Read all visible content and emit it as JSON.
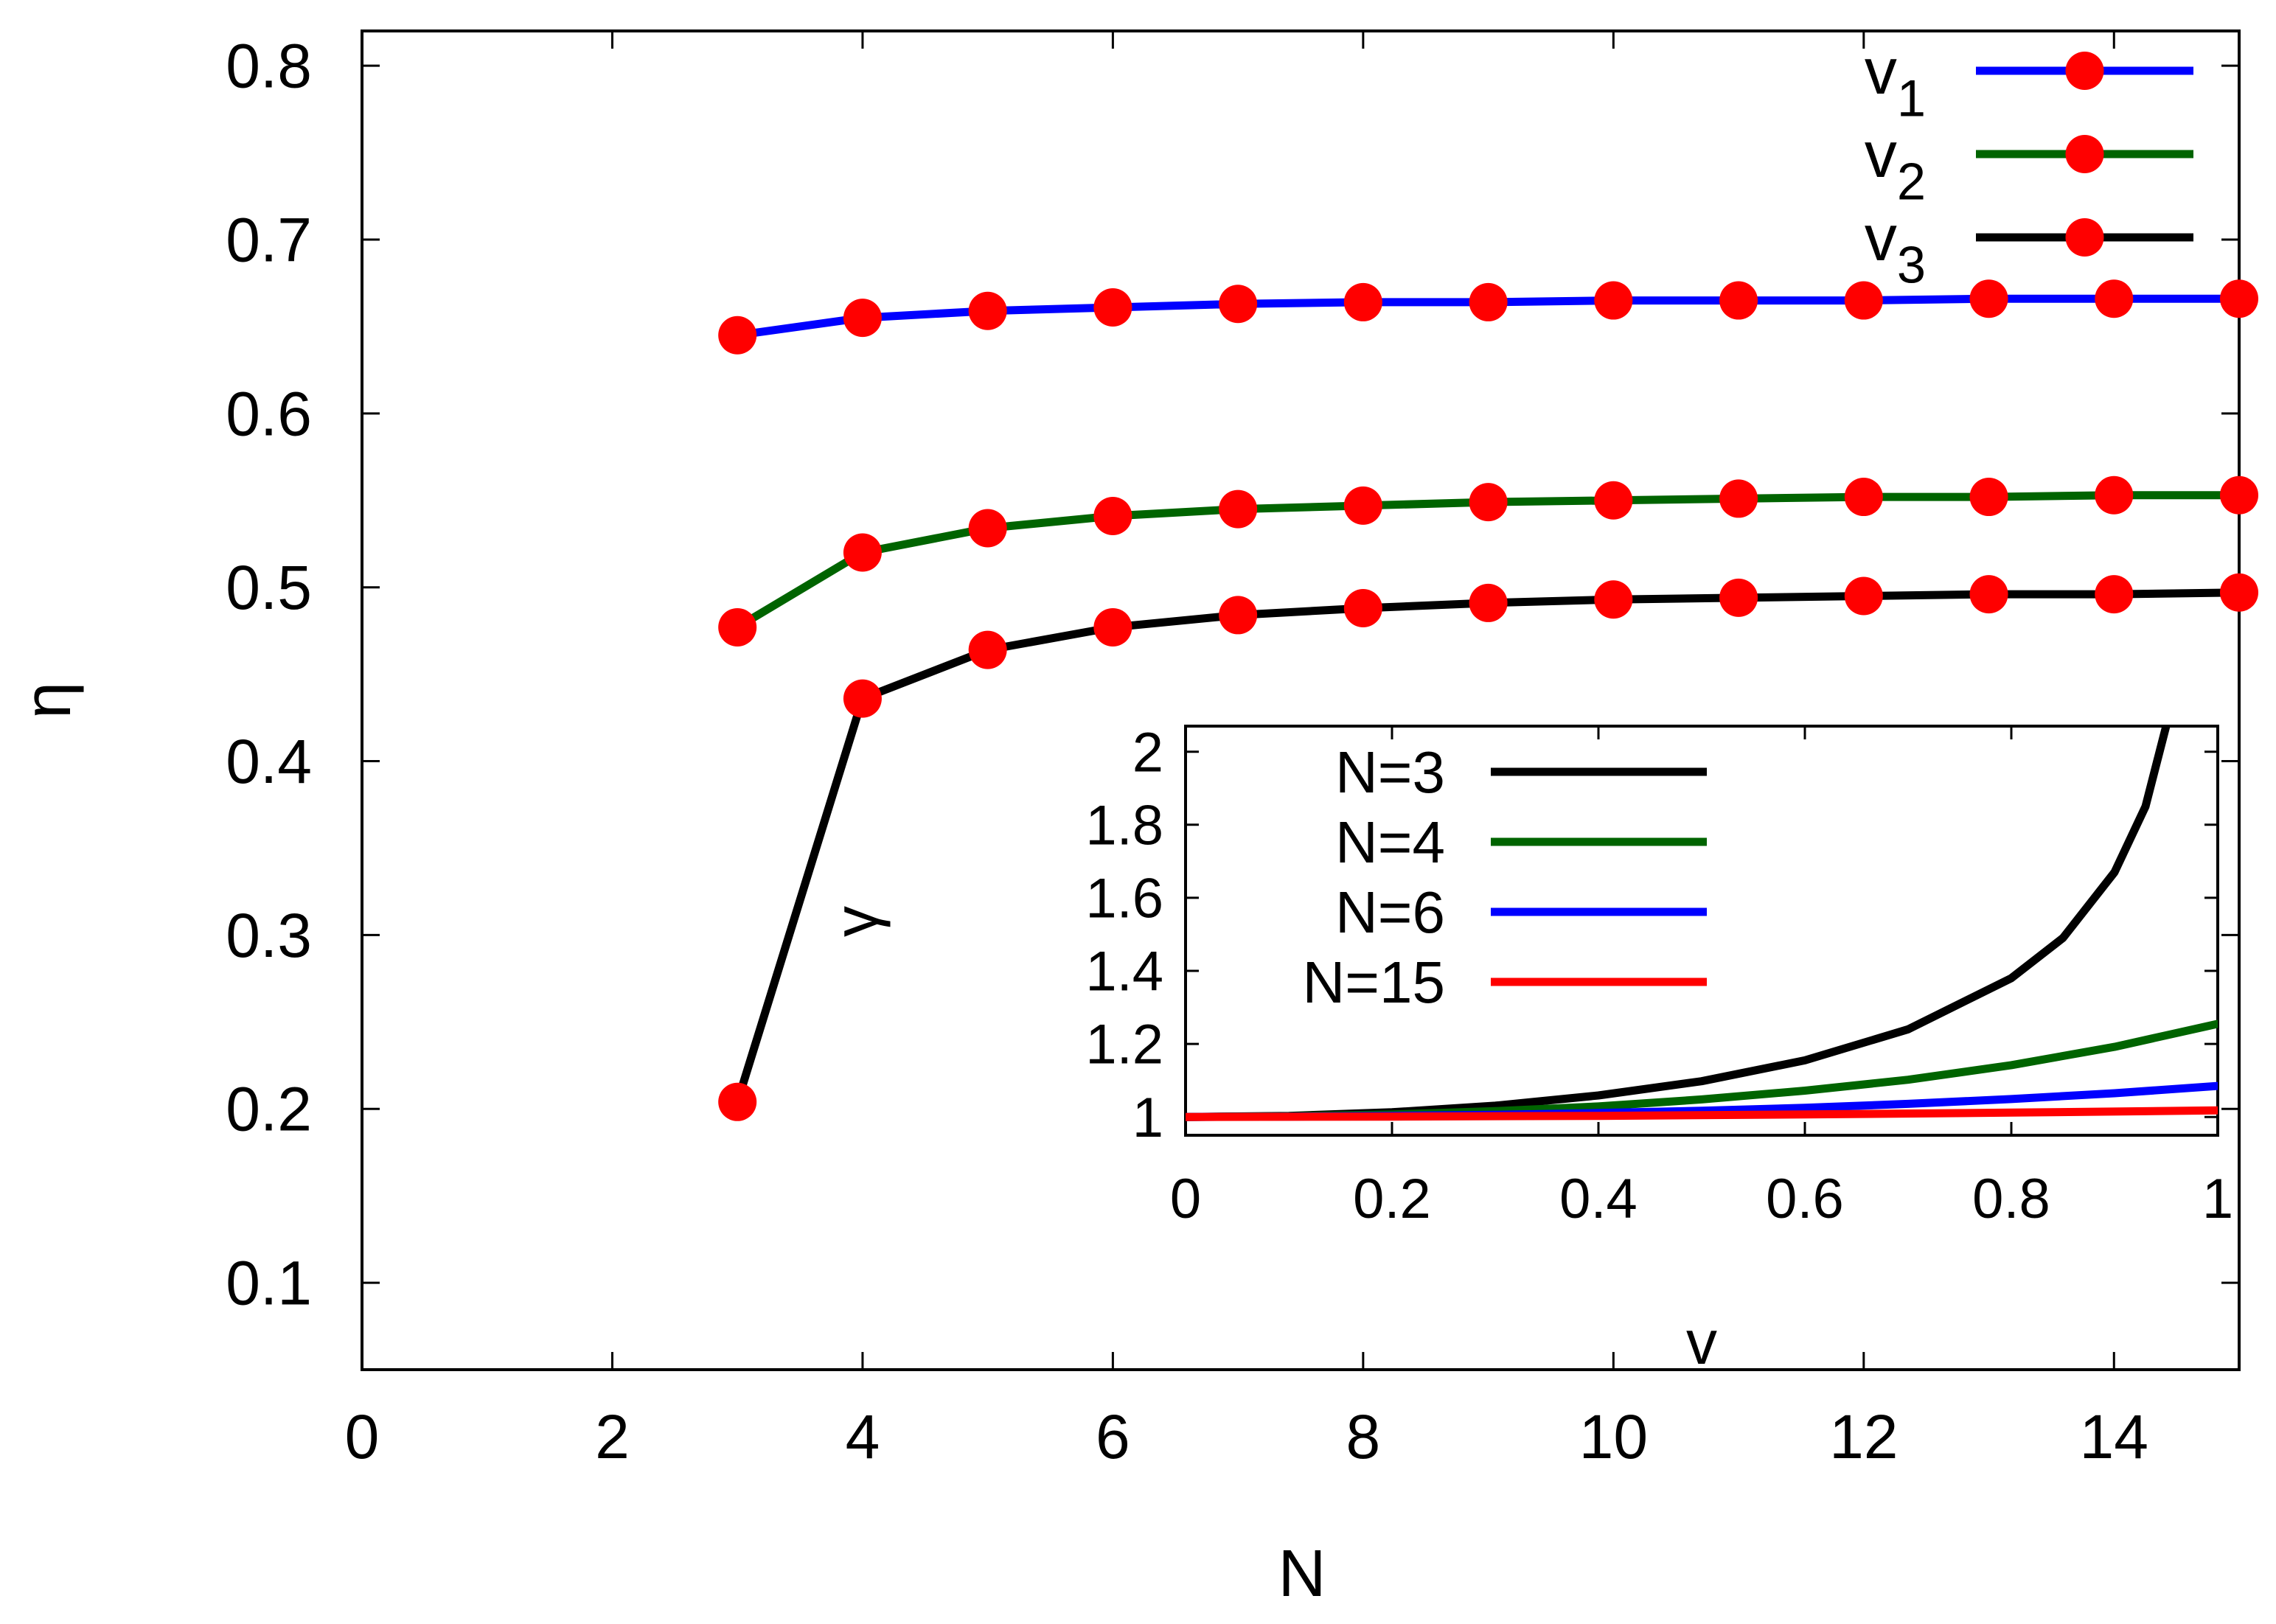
{
  "chart_data": [
    {
      "type": "line",
      "title": "",
      "xlabel": "N",
      "ylabel": "η",
      "xlim": [
        0,
        15
      ],
      "ylim": [
        0.05,
        0.82
      ],
      "xticks": [
        "0",
        "2",
        "4",
        "6",
        "8",
        "10",
        "12",
        "14"
      ],
      "xtick_values": [
        0,
        2,
        4,
        6,
        8,
        10,
        12,
        14
      ],
      "yticks": [
        "0.1",
        "0.2",
        "0.3",
        "0.4",
        "0.5",
        "0.6",
        "0.7",
        "0.8"
      ],
      "ytick_values": [
        0.1,
        0.2,
        0.3,
        0.4,
        0.5,
        0.6,
        0.7,
        0.8
      ],
      "grid": false,
      "legend_position": "top-right",
      "marker_color": "#ff0000",
      "series": [
        {
          "name": "v",
          "subscript": "1",
          "color": "#0000ff",
          "x": [
            3,
            4,
            5,
            6,
            7,
            8,
            9,
            10,
            11,
            12,
            13,
            14,
            15
          ],
          "values": [
            0.645,
            0.655,
            0.659,
            0.661,
            0.663,
            0.664,
            0.664,
            0.665,
            0.665,
            0.665,
            0.666,
            0.666,
            0.666
          ]
        },
        {
          "name": "v",
          "subscript": "2",
          "color": "#006400",
          "x": [
            3,
            4,
            5,
            6,
            7,
            8,
            9,
            10,
            11,
            12,
            13,
            14,
            15
          ],
          "values": [
            0.477,
            0.52,
            0.534,
            0.541,
            0.545,
            0.547,
            0.549,
            0.55,
            0.551,
            0.552,
            0.552,
            0.553,
            0.553
          ]
        },
        {
          "name": "v",
          "subscript": "3",
          "color": "#000000",
          "x": [
            3,
            4,
            5,
            6,
            7,
            8,
            9,
            10,
            11,
            12,
            13,
            14,
            15
          ],
          "values": [
            0.204,
            0.436,
            0.464,
            0.477,
            0.484,
            0.488,
            0.491,
            0.493,
            0.494,
            0.495,
            0.496,
            0.496,
            0.497
          ]
        }
      ]
    },
    {
      "type": "line",
      "title": "",
      "xlabel": "v",
      "ylabel": "γ",
      "xlim": [
        0,
        1
      ],
      "ylim": [
        0.95,
        2.07
      ],
      "xticks": [
        "0",
        "0.2",
        "0.4",
        "0.6",
        "0.8",
        "1"
      ],
      "xtick_values": [
        0,
        0.2,
        0.4,
        0.6,
        0.8,
        1
      ],
      "yticks": [
        "1",
        "1.2",
        "1.4",
        "1.6",
        "1.8",
        "2"
      ],
      "ytick_values": [
        1,
        1.2,
        1.4,
        1.6,
        1.8,
        2
      ],
      "grid": false,
      "legend_position": "top-left",
      "series": [
        {
          "name": "N=3",
          "color": "#000000",
          "x": [
            0,
            0.1,
            0.2,
            0.3,
            0.4,
            0.5,
            0.6,
            0.7,
            0.8,
            0.85,
            0.9,
            0.93,
            0.95
          ],
          "values": [
            1.0,
            1.003,
            1.013,
            1.031,
            1.059,
            1.098,
            1.155,
            1.24,
            1.38,
            1.49,
            1.67,
            1.85,
            2.07
          ]
        },
        {
          "name": "N=4",
          "color": "#006400",
          "x": [
            0,
            0.1,
            0.2,
            0.3,
            0.4,
            0.5,
            0.6,
            0.7,
            0.8,
            0.9,
            1.0
          ],
          "values": [
            1.0,
            1.002,
            1.007,
            1.016,
            1.029,
            1.048,
            1.072,
            1.102,
            1.142,
            1.192,
            1.255
          ]
        },
        {
          "name": "N=6",
          "color": "#0000ff",
          "x": [
            0,
            0.1,
            0.2,
            0.3,
            0.4,
            0.5,
            0.6,
            0.7,
            0.8,
            0.9,
            1.0
          ],
          "values": [
            1.0,
            1.001,
            1.003,
            1.006,
            1.011,
            1.017,
            1.025,
            1.036,
            1.049,
            1.065,
            1.085
          ]
        },
        {
          "name": "N=15",
          "color": "#ff0000",
          "x": [
            0,
            0.2,
            0.4,
            0.6,
            0.8,
            1.0
          ],
          "values": [
            1.0,
            1.001,
            1.003,
            1.007,
            1.012,
            1.018
          ]
        }
      ]
    }
  ]
}
